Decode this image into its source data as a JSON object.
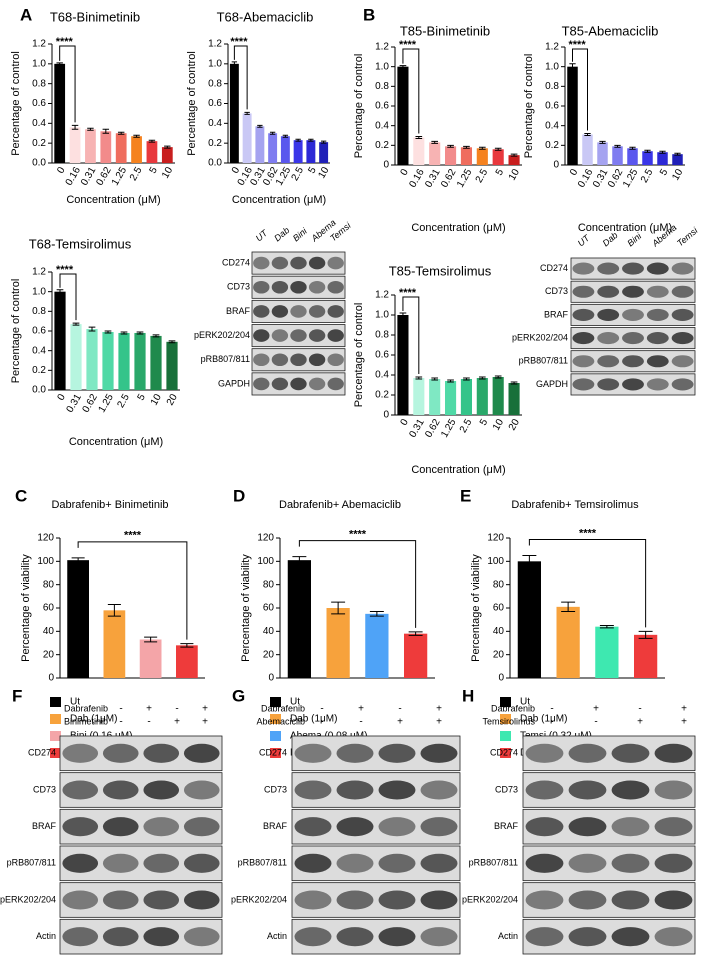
{
  "panels": [
    "A",
    "B",
    "C",
    "D",
    "E",
    "F",
    "G",
    "H"
  ],
  "chart_data": [
    {
      "type": "bar",
      "title": "T68-Binimetinib",
      "x_label": "Concentration (μM)",
      "y_label": "Percentage of control",
      "annotation": "****",
      "categories": [
        "0",
        "0.16",
        "0.31",
        "0.62",
        "1.25",
        "2.5",
        "5",
        "10"
      ],
      "values": [
        1.0,
        0.36,
        0.34,
        0.32,
        0.3,
        0.27,
        0.22,
        0.16
      ],
      "errors": [
        0.01,
        0.02,
        0.01,
        0.02,
        0.01,
        0.01,
        0.01,
        0.01
      ],
      "colors": [
        "#000000",
        "#fde0e0",
        "#f7b3b3",
        "#f28b8b",
        "#ef6d5e",
        "#f5821f",
        "#e8383d",
        "#c81e1e"
      ],
      "ylim": [
        0,
        1.2
      ],
      "yticks": [
        {
          "value": 0,
          "label": "0.0"
        },
        {
          "value": 0.2,
          "label": "0.2"
        },
        {
          "value": 0.4,
          "label": "0.4"
        },
        {
          "value": 0.6,
          "label": "0.6"
        },
        {
          "value": 0.8,
          "label": "0.8"
        },
        {
          "value": 1,
          "label": "1.0"
        },
        {
          "value": 1.2,
          "label": "1.2"
        }
      ]
    },
    {
      "type": "bar",
      "title": "T68-Abemaciclib",
      "x_label": "Concentration (μM)",
      "y_label": "Percentage of control",
      "annotation": "****",
      "categories": [
        "0",
        "0.16",
        "0.31",
        "0.62",
        "1.25",
        "2.5",
        "5",
        "10"
      ],
      "values": [
        1.0,
        0.5,
        0.37,
        0.3,
        0.27,
        0.23,
        0.23,
        0.21
      ],
      "errors": [
        0.02,
        0.01,
        0.01,
        0.01,
        0.01,
        0.01,
        0.01,
        0.01
      ],
      "colors": [
        "#000000",
        "#c9c8f5",
        "#a5a3f0",
        "#7f7cf0",
        "#5a57ee",
        "#3a36e8",
        "#2c28d6",
        "#2020b8"
      ],
      "ylim": [
        0,
        1.2
      ],
      "yticks": [
        {
          "value": 0,
          "label": "0.0"
        },
        {
          "value": 0.2,
          "label": "0.2"
        },
        {
          "value": 0.4,
          "label": "0.4"
        },
        {
          "value": 0.6,
          "label": "0.6"
        },
        {
          "value": 0.8,
          "label": "0.8"
        },
        {
          "value": 1,
          "label": "1.0"
        },
        {
          "value": 1.2,
          "label": "1.2"
        }
      ]
    },
    {
      "type": "bar",
      "title": "T68-Temsirolimus",
      "x_label": "Concentration (μM)",
      "y_label": "Percentage of control",
      "annotation": "****",
      "categories": [
        "0",
        "0.31",
        "0.62",
        "1.25",
        "2.5",
        "5",
        "10",
        "20"
      ],
      "values": [
        1.0,
        0.67,
        0.62,
        0.59,
        0.58,
        0.58,
        0.55,
        0.49
      ],
      "errors": [
        0.02,
        0.01,
        0.02,
        0.01,
        0.01,
        0.01,
        0.01,
        0.01
      ],
      "colors": [
        "#000000",
        "#b6f5df",
        "#7fe8c3",
        "#4fd9a6",
        "#34c48a",
        "#2aa86a",
        "#1f8a4c",
        "#18703a"
      ],
      "ylim": [
        0,
        1.2
      ],
      "yticks": [
        {
          "value": 0,
          "label": "0.0"
        },
        {
          "value": 0.2,
          "label": "0.2"
        },
        {
          "value": 0.4,
          "label": "0.4"
        },
        {
          "value": 0.6,
          "label": "0.6"
        },
        {
          "value": 0.8,
          "label": "0.8"
        },
        {
          "value": 1,
          "label": "1.0"
        },
        {
          "value": 1.2,
          "label": "1.2"
        }
      ]
    },
    {
      "type": "bar",
      "title": "T85-Binimetinib",
      "x_label": "Concentration (μM)",
      "y_label": "Percentage of control",
      "annotation": "****",
      "categories": [
        "0",
        "0.16",
        "0.31",
        "0.62",
        "1.25",
        "2.5",
        "5",
        "10"
      ],
      "values": [
        1.0,
        0.28,
        0.23,
        0.19,
        0.18,
        0.17,
        0.16,
        0.1
      ],
      "errors": [
        0.01,
        0.01,
        0.01,
        0.01,
        0.01,
        0.01,
        0.01,
        0.01
      ],
      "colors": [
        "#000000",
        "#fde0e0",
        "#f7b3b3",
        "#f28b8b",
        "#ef6d5e",
        "#f5821f",
        "#e8383d",
        "#c81e1e"
      ],
      "ylim": [
        0,
        1.2
      ],
      "yticks": [
        0,
        0.2,
        0.4,
        0.6,
        0.8,
        {
          "value": 1,
          "label": "1.0"
        },
        1.2
      ]
    },
    {
      "type": "bar",
      "title": "T85-Abemaciclib",
      "x_label": "Concentration (μM)",
      "y_label": "Percentage of control",
      "annotation": "****",
      "categories": [
        "0",
        "0.16",
        "0.31",
        "0.62",
        "1.25",
        "2.5",
        "5",
        "10"
      ],
      "values": [
        1.0,
        0.31,
        0.23,
        0.19,
        0.17,
        0.14,
        0.13,
        0.11
      ],
      "errors": [
        0.03,
        0.01,
        0.01,
        0.01,
        0.01,
        0.01,
        0.01,
        0.01
      ],
      "colors": [
        "#000000",
        "#c9c8f5",
        "#a5a3f0",
        "#7f7cf0",
        "#5a57ee",
        "#3a36e8",
        "#2c28d6",
        "#2020b8"
      ],
      "ylim": [
        0,
        1.2
      ],
      "yticks": [
        0,
        0.2,
        0.4,
        0.6,
        0.8,
        {
          "value": 1,
          "label": "1.0"
        },
        1.2
      ]
    },
    {
      "type": "bar",
      "title": "T85-Temsirolimus",
      "x_label": "Concentration (μM)",
      "y_label": "Percentage of control",
      "annotation": "****",
      "categories": [
        "0",
        "0.31",
        "0.62",
        "1.25",
        "2.5",
        "5",
        "10",
        "20"
      ],
      "values": [
        1.0,
        0.37,
        0.36,
        0.34,
        0.36,
        0.37,
        0.38,
        0.32
      ],
      "errors": [
        0.02,
        0.01,
        0.01,
        0.01,
        0.01,
        0.01,
        0.01,
        0.01
      ],
      "colors": [
        "#000000",
        "#b6f5df",
        "#7fe8c3",
        "#4fd9a6",
        "#34c48a",
        "#2aa86a",
        "#1f8a4c",
        "#18703a"
      ],
      "ylim": [
        0,
        1.2
      ],
      "yticks": [
        0,
        0.2,
        0.4,
        0.6,
        0.8,
        {
          "value": 1,
          "label": "1.0"
        },
        1.2
      ]
    },
    {
      "type": "bar",
      "title": "Dabrafenib+ Binimetinib",
      "y_label": "Percentage of viability",
      "annotation": "****",
      "legend": true,
      "categories": [
        "Ut",
        "Dab (1μM)",
        "Bini (0.16 μM)",
        "Dab (1 μM) +Bini (0.16 μM)"
      ],
      "values": [
        101,
        58,
        33,
        28
      ],
      "errors": [
        2,
        5,
        2,
        1.5
      ],
      "colors": [
        "#000000",
        "#f7a23c",
        "#f4a5a8",
        "#ee3b3b"
      ],
      "ylim": [
        0,
        120
      ],
      "yticks": [
        0,
        20,
        40,
        60,
        80,
        100,
        120
      ]
    },
    {
      "type": "bar",
      "title": "Dabrafenib+ Abemaciclib",
      "y_label": "Percentage of viability",
      "annotation": "****",
      "legend": true,
      "categories": [
        "Ut",
        "Dab (1μM)",
        "Abema (0.08 μM)",
        "Dab (1 μM) + Abema (0.08 μM)"
      ],
      "values": [
        101,
        60,
        55,
        38
      ],
      "errors": [
        3,
        5,
        2,
        1.5
      ],
      "colors": [
        "#000000",
        "#f7a23c",
        "#4fa3f7",
        "#ee3b3b"
      ],
      "ylim": [
        0,
        120
      ],
      "yticks": [
        0,
        20,
        40,
        60,
        80,
        100,
        120
      ]
    },
    {
      "type": "bar",
      "title": "Dabrafenib+ Temsirolimus",
      "y_label": "Percentage of viability",
      "annotation": "****",
      "legend": true,
      "categories": [
        "Ut",
        "Dab (1μM)",
        "Temsi (0.32 μM)",
        "Dab (1 μM) +Temsi (0.32 μM)"
      ],
      "values": [
        100,
        61,
        44,
        37
      ],
      "errors": [
        5,
        4,
        1,
        3
      ],
      "colors": [
        "#000000",
        "#f7a23c",
        "#3ee8b0",
        "#ee3b3b"
      ],
      "ylim": [
        0,
        120
      ],
      "yticks": [
        0,
        20,
        40,
        60,
        80,
        100,
        120
      ]
    }
  ],
  "blots": [
    {
      "lanes": [
        "UT",
        "Dab",
        "Bini",
        "Abema",
        "Temsi"
      ],
      "rows": [
        "CD274",
        "CD73",
        "BRAF",
        "pERK202/204",
        "pRB807/811",
        "GAPDH"
      ]
    },
    {
      "lanes": [
        "UT",
        "Dab",
        "Bini",
        "Abema",
        "Temsi"
      ],
      "rows": [
        "CD274",
        "CD73",
        "BRAF",
        "pERK202/204",
        "pRB807/811",
        "GAPDH"
      ]
    },
    {
      "treatments": [
        {
          "name": "Dabrafenib",
          "signs": [
            "-",
            "+",
            "-",
            "+"
          ]
        },
        {
          "name": "Binimetinib",
          "signs": [
            "-",
            "-",
            "+",
            "+"
          ]
        }
      ],
      "rows": [
        "CD274",
        "CD73",
        "BRAF",
        "pRB807/811",
        "pERK202/204",
        "Actin"
      ]
    },
    {
      "treatments": [
        {
          "name": "Dabrafenib",
          "signs": [
            "-",
            "+",
            "-",
            "+"
          ]
        },
        {
          "name": "Abemaciclib",
          "signs": [
            "-",
            "-",
            "+",
            "+"
          ]
        }
      ],
      "rows": [
        "CD274",
        "CD73",
        "BRAF",
        "pRB807/811",
        "pERK202/204",
        "Actin"
      ]
    },
    {
      "treatments": [
        {
          "name": "Dabrafenib",
          "signs": [
            "-",
            "+",
            "-",
            "+"
          ]
        },
        {
          "name": "Temsirolimus",
          "signs": [
            "-",
            "-",
            "+",
            "+"
          ]
        }
      ],
      "rows": [
        "CD274",
        "CD73",
        "BRAF",
        "pRB807/811",
        "pERK202/204",
        "Actin"
      ]
    }
  ]
}
